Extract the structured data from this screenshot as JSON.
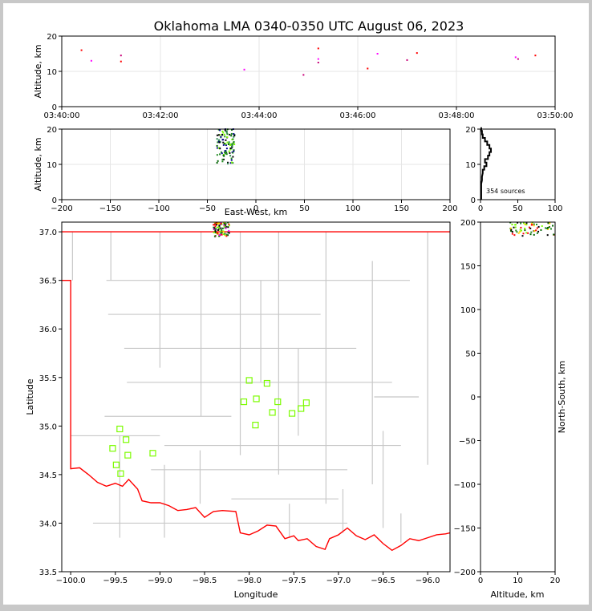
{
  "chart_data": {
    "title": "Oklahoma LMA 0340-0350 UTC August 06, 2023",
    "panels": [
      {
        "id": "time-height",
        "type": "scatter",
        "ylabel": "Altitude, km",
        "xlim": [
          "03:40:00",
          "03:50:00"
        ],
        "ylim": [
          0,
          20
        ],
        "xticks": [
          "03:40:00",
          "03:42:00",
          "03:44:00",
          "03:46:00",
          "03:48:00",
          "03:50:00"
        ],
        "yticks": [
          0,
          10,
          20
        ],
        "points": [
          {
            "t": "03:40:24",
            "alt": 16.0
          },
          {
            "t": "03:40:36",
            "alt": 13.0
          },
          {
            "t": "03:41:12",
            "alt": 14.5
          },
          {
            "t": "03:41:12",
            "alt": 12.8
          },
          {
            "t": "03:43:42",
            "alt": 10.5
          },
          {
            "t": "03:44:54",
            "alt": 9.0
          },
          {
            "t": "03:45:12",
            "alt": 16.5
          },
          {
            "t": "03:45:12",
            "alt": 13.5
          },
          {
            "t": "03:45:12",
            "alt": 12.5
          },
          {
            "t": "03:46:12",
            "alt": 10.8
          },
          {
            "t": "03:46:24",
            "alt": 15.0
          },
          {
            "t": "03:47:00",
            "alt": 13.2
          },
          {
            "t": "03:47:12",
            "alt": 15.2
          },
          {
            "t": "03:49:12",
            "alt": 14.0
          },
          {
            "t": "03:49:15",
            "alt": 13.5
          },
          {
            "t": "03:49:36",
            "alt": 14.5
          }
        ]
      },
      {
        "id": "east-west-altitude",
        "type": "scatter",
        "xlabel": "East-West, km",
        "ylabel": "Altitude, km",
        "xlim": [
          -200,
          200
        ],
        "ylim": [
          0,
          20
        ],
        "xticks": [
          -200,
          -150,
          -100,
          -50,
          0,
          50,
          100,
          150,
          200
        ],
        "yticks": [
          0,
          10,
          20
        ],
        "cluster": {
          "x_range": [
            -40,
            -22
          ],
          "alt_range": [
            10,
            20
          ]
        }
      },
      {
        "id": "altitude-histogram",
        "type": "line",
        "xlim": [
          0,
          100
        ],
        "ylim": [
          0,
          20
        ],
        "xticks": [
          0,
          50,
          100
        ],
        "yticks": [
          0,
          10,
          20
        ],
        "annotation": "354 sources",
        "profile": [
          {
            "alt": 0.5,
            "count": 1
          },
          {
            "alt": 2,
            "count": 1
          },
          {
            "alt": 4,
            "count": 1
          },
          {
            "alt": 6,
            "count": 2
          },
          {
            "alt": 8,
            "count": 3
          },
          {
            "alt": 9,
            "count": 5
          },
          {
            "alt": 10,
            "count": 8
          },
          {
            "alt": 11,
            "count": 6
          },
          {
            "alt": 12,
            "count": 10
          },
          {
            "alt": 13,
            "count": 12
          },
          {
            "alt": 14,
            "count": 14
          },
          {
            "alt": 15,
            "count": 12
          },
          {
            "alt": 16,
            "count": 9
          },
          {
            "alt": 17,
            "count": 6
          },
          {
            "alt": 18,
            "count": 3
          },
          {
            "alt": 19,
            "count": 2
          },
          {
            "alt": 20,
            "count": 1
          }
        ]
      },
      {
        "id": "plan-view-map",
        "type": "scatter",
        "xlabel": "Longitude",
        "ylabel": "Latitude",
        "xlim": [
          -100.1,
          -95.75
        ],
        "ylim": [
          33.5,
          37.1
        ],
        "xticks": [
          -100.0,
          -99.5,
          -99.0,
          -98.5,
          -98.0,
          -97.5,
          -97.0,
          -96.5,
          -96.0
        ],
        "yticks": [
          33.5,
          34.0,
          34.5,
          35.0,
          35.5,
          36.0,
          36.5,
          37.0
        ],
        "xtick_labels": [
          "−100.0",
          "−99.5",
          "−99.0",
          "−98.5",
          "−98.0",
          "−97.5",
          "−97.0",
          "−96.5",
          "−96.0"
        ],
        "stations": [
          {
            "lon": -99.45,
            "lat": 34.97
          },
          {
            "lon": -99.38,
            "lat": 34.86
          },
          {
            "lon": -99.53,
            "lat": 34.77
          },
          {
            "lon": -99.36,
            "lat": 34.7
          },
          {
            "lon": -99.49,
            "lat": 34.6
          },
          {
            "lon": -99.44,
            "lat": 34.51
          },
          {
            "lon": -99.08,
            "lat": 34.72
          },
          {
            "lon": -98.0,
            "lat": 35.47
          },
          {
            "lon": -97.8,
            "lat": 35.44
          },
          {
            "lon": -98.06,
            "lat": 35.25
          },
          {
            "lon": -97.92,
            "lat": 35.28
          },
          {
            "lon": -97.68,
            "lat": 35.25
          },
          {
            "lon": -97.36,
            "lat": 35.24
          },
          {
            "lon": -97.42,
            "lat": 35.18
          },
          {
            "lon": -97.74,
            "lat": 35.14
          },
          {
            "lon": -97.52,
            "lat": 35.13
          },
          {
            "lon": -97.93,
            "lat": 35.01
          }
        ],
        "cluster": {
          "lon_range": [
            -98.4,
            -98.22
          ],
          "lat_range": [
            36.95,
            37.1
          ]
        }
      },
      {
        "id": "altitude-north-south",
        "type": "scatter",
        "xlabel": "Altitude, km",
        "ylabel": "North-South, km",
        "xlim": [
          0,
          20
        ],
        "ylim": [
          -200,
          200
        ],
        "xticks": [
          0,
          10,
          20
        ],
        "yticks": [
          -200,
          -150,
          -100,
          -50,
          0,
          50,
          100,
          150,
          200
        ],
        "yticks_labels": [
          "−200",
          "−150",
          "−100",
          "−50",
          "0",
          "50",
          "100",
          "150",
          "200"
        ],
        "cluster": {
          "alt_range": [
            8,
            20
          ],
          "ns_range": [
            184,
            200
          ]
        }
      }
    ]
  },
  "colors": {
    "border": "#ff0000",
    "counties": "#c8c8c8",
    "station": "#7cfc00",
    "sources": [
      "#00008b",
      "#006400",
      "#228b22",
      "#7cfc00",
      "#ffd700",
      "#ff8c00",
      "#ff0000",
      "#8b0000",
      "#ff00ff",
      "#000000"
    ]
  }
}
